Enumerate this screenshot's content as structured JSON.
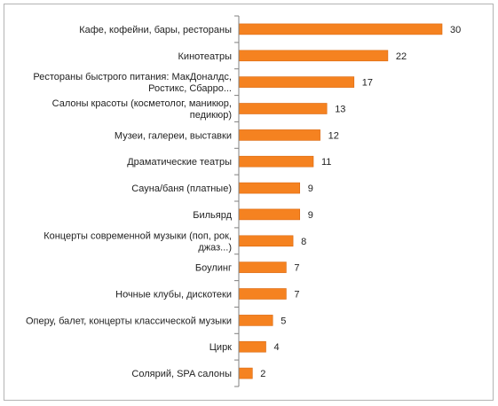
{
  "chart_data": {
    "type": "bar",
    "orientation": "horizontal",
    "categories": [
      [
        "Кафе, кофейни, бары, рестораны"
      ],
      [
        "Кинотеатры"
      ],
      [
        "Рестораны быстрого питания: МакДоналдс,",
        "Ростикс, Сбарро..."
      ],
      [
        "Салоны красоты (косметолог, маникюр,",
        "педикюр)"
      ],
      [
        "Музеи, галереи, выставки"
      ],
      [
        "Драматические театры"
      ],
      [
        "Сауна/баня (платные)"
      ],
      [
        "Бильярд"
      ],
      [
        "Концерты современной музыки (поп, рок,",
        "джаз...)"
      ],
      [
        "Боулинг"
      ],
      [
        "Ночные клубы, дискотеки"
      ],
      [
        "Оперу, балет, концерты классической музыки"
      ],
      [
        "Цирк"
      ],
      [
        "Солярий, SPA салоны"
      ]
    ],
    "values": [
      30,
      22,
      17,
      13,
      12,
      11,
      9,
      9,
      8,
      7,
      7,
      5,
      4,
      2
    ],
    "data_labels": [
      "30",
      "22",
      "17",
      "13",
      "12",
      "11",
      "9",
      "9",
      "8",
      "7",
      "7",
      "5",
      "4",
      "2"
    ],
    "xlim": [
      0,
      30
    ],
    "grid": false,
    "legend": "none",
    "colors": {
      "bar": "#F58220",
      "bar_edge": "#D9680F",
      "axis": "#808080",
      "frame": "#B3B3B3"
    }
  }
}
